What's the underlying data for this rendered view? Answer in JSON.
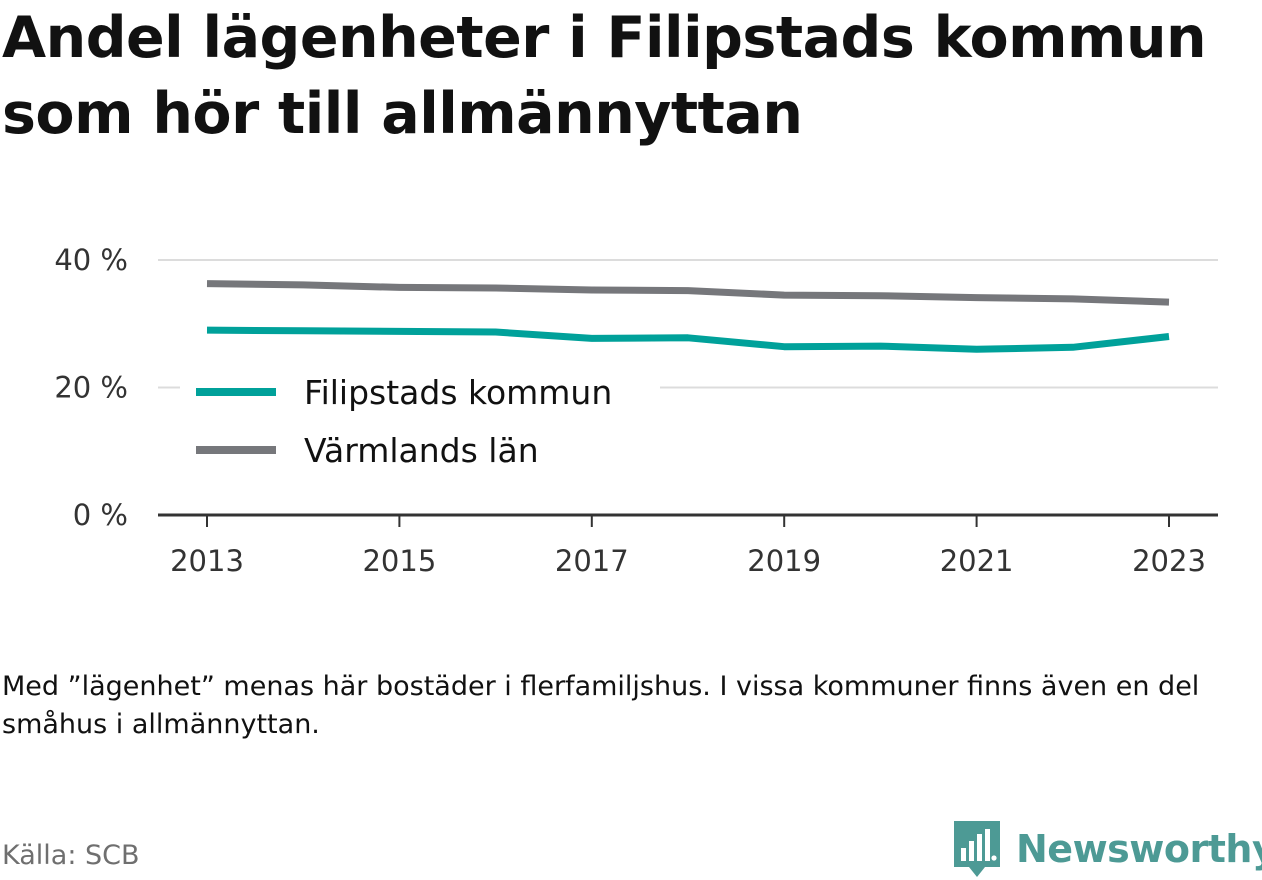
{
  "title": "Andel lägenheter i Filipstads kommun som hör till allmännyttan",
  "note": "Med ”lägenhet” menas här bostäder i flerfamiljshus. I vissa kommuner finns även en del småhus i allmännyttan.",
  "source": "Källa: SCB",
  "brand": {
    "name": "Newsworthy",
    "icon": "newsworthy-logo-icon",
    "color": "#4d9a95"
  },
  "chart_data": {
    "type": "line",
    "x": [
      2013,
      2014,
      2015,
      2016,
      2017,
      2018,
      2019,
      2020,
      2021,
      2022,
      2023
    ],
    "x_ticks": [
      "2013",
      "2015",
      "2017",
      "2019",
      "2021",
      "2023"
    ],
    "y_ticks": [
      "0 %",
      "20 %",
      "40 %"
    ],
    "ylim": [
      0,
      40
    ],
    "grid": true,
    "legend_placement": "inside-left",
    "series": [
      {
        "name": "Filipstads kommun",
        "color": "#00a19a",
        "values": [
          29.0,
          28.9,
          28.8,
          28.7,
          27.7,
          27.8,
          26.4,
          26.5,
          26.0,
          26.3,
          28.0
        ]
      },
      {
        "name": "Värmlands län",
        "color": "#76777b",
        "values": [
          36.3,
          36.1,
          35.7,
          35.6,
          35.3,
          35.2,
          34.5,
          34.4,
          34.1,
          33.9,
          33.4
        ]
      }
    ]
  }
}
